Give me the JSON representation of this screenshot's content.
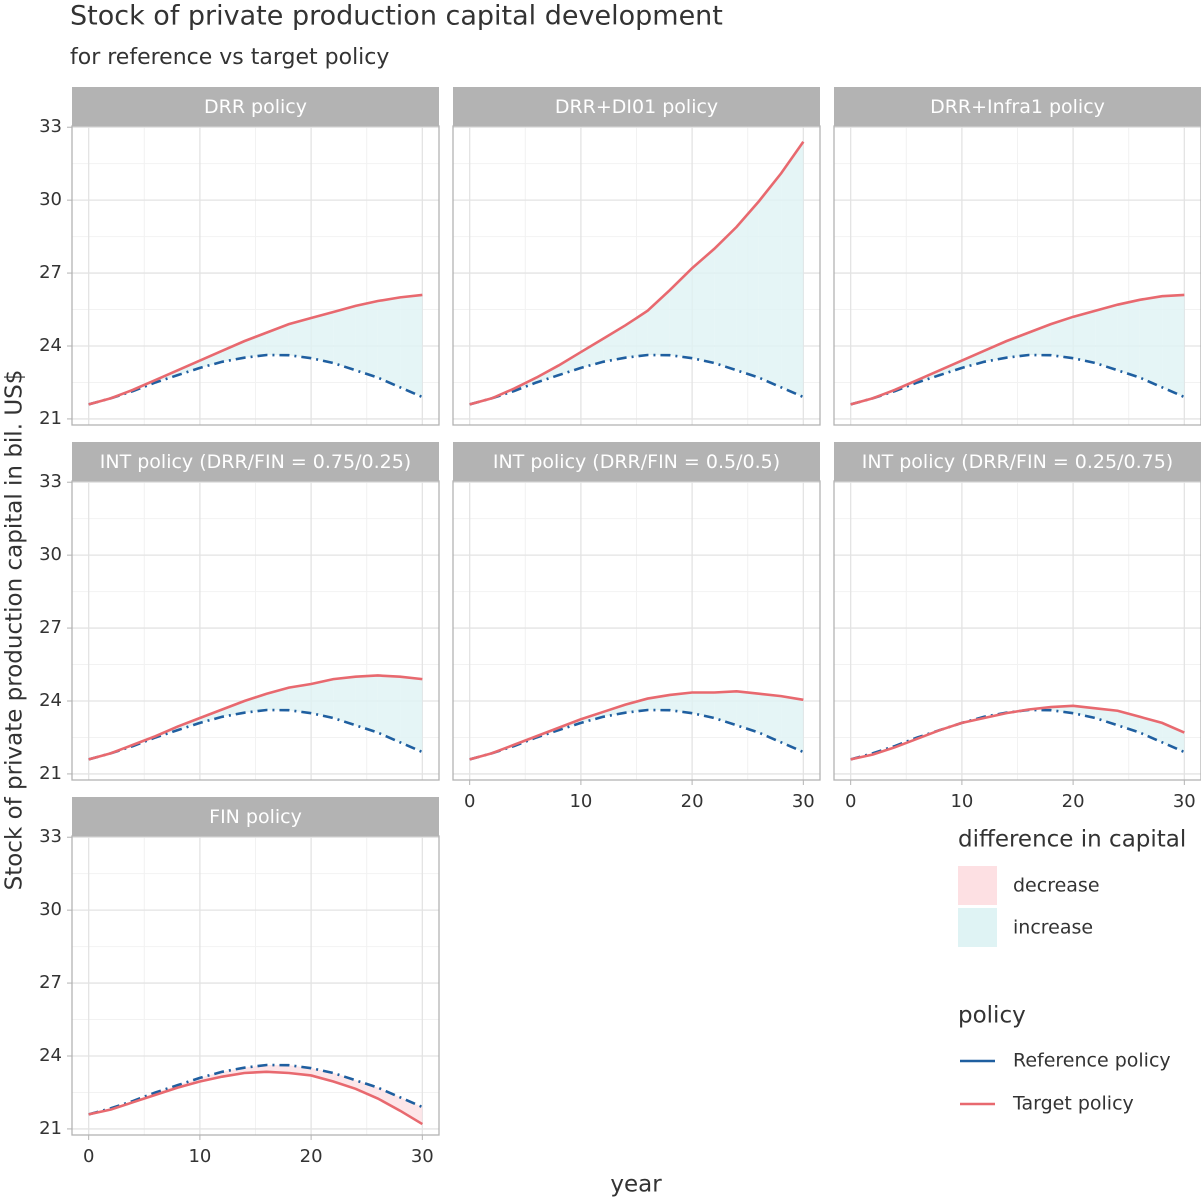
{
  "chart_data": {
    "type": "line",
    "title": "Stock of private production capital development",
    "subtitle": "for reference vs target policy",
    "xlabel": "year",
    "ylabel": "Stock of private production capital in bil. US$",
    "x": [
      0,
      2,
      4,
      6,
      8,
      10,
      12,
      14,
      16,
      18,
      20,
      22,
      24,
      26,
      28,
      30
    ],
    "xlim": [
      -1.5,
      31.5
    ],
    "ylim": [
      20.75,
      33.05
    ],
    "xticks": [
      0,
      10,
      20,
      30
    ],
    "yticks": [
      21,
      24,
      27,
      30,
      33
    ],
    "minor_xticks": [
      5,
      15,
      25
    ],
    "minor_yticks": [
      22.5,
      25.5,
      28.5,
      31.5
    ],
    "grid": true,
    "legend_position": "right",
    "legend_title": "policy",
    "fill_legend": {
      "title": "difference in capital",
      "items": [
        {
          "name": "decrease",
          "color": "#fde0e3"
        },
        {
          "name": "increase",
          "color": "#dff3f4"
        }
      ]
    },
    "panels": [
      {
        "title": "DRR policy",
        "series": [
          {
            "name": "Reference policy",
            "color": "#1f5fa0",
            "values": [
              21.6,
              21.85,
              22.15,
              22.5,
              22.8,
              23.1,
              23.35,
              23.52,
              23.63,
              23.62,
              23.5,
              23.3,
              23.0,
              22.7,
              22.3,
              21.9
            ]
          },
          {
            "name": "Target policy",
            "color": "#e8696f",
            "values": [
              21.6,
              21.85,
              22.2,
              22.6,
              23.0,
              23.4,
              23.8,
              24.2,
              24.55,
              24.9,
              25.15,
              25.4,
              25.65,
              25.85,
              26.0,
              26.1
            ]
          }
        ]
      },
      {
        "title": "DRR+DI01 policy",
        "series": [
          {
            "name": "Reference policy",
            "color": "#1f5fa0",
            "values": [
              21.6,
              21.85,
              22.15,
              22.5,
              22.8,
              23.1,
              23.35,
              23.52,
              23.63,
              23.62,
              23.5,
              23.3,
              23.0,
              22.7,
              22.3,
              21.9
            ]
          },
          {
            "name": "Target policy",
            "color": "#e8696f",
            "values": [
              21.6,
              21.85,
              22.25,
              22.7,
              23.2,
              23.75,
              24.3,
              24.85,
              25.45,
              26.3,
              27.2,
              28.0,
              28.9,
              29.95,
              31.1,
              32.4
            ]
          }
        ]
      },
      {
        "title": "DRR+Infra1 policy",
        "series": [
          {
            "name": "Reference policy",
            "color": "#1f5fa0",
            "values": [
              21.6,
              21.85,
              22.15,
              22.5,
              22.8,
              23.1,
              23.35,
              23.52,
              23.63,
              23.62,
              23.5,
              23.3,
              23.0,
              22.7,
              22.3,
              21.9
            ]
          },
          {
            "name": "Target policy",
            "color": "#e8696f",
            "values": [
              21.6,
              21.85,
              22.2,
              22.6,
              23.0,
              23.4,
              23.8,
              24.2,
              24.55,
              24.9,
              25.2,
              25.45,
              25.7,
              25.9,
              26.05,
              26.1
            ]
          }
        ]
      },
      {
        "title": "INT policy (DRR/FIN = 0.75/0.25)",
        "series": [
          {
            "name": "Reference policy",
            "color": "#1f5fa0",
            "values": [
              21.6,
              21.85,
              22.15,
              22.5,
              22.8,
              23.1,
              23.35,
              23.52,
              23.63,
              23.62,
              23.5,
              23.3,
              23.0,
              22.7,
              22.3,
              21.9
            ]
          },
          {
            "name": "Target policy",
            "color": "#e8696f",
            "values": [
              21.6,
              21.85,
              22.2,
              22.55,
              22.95,
              23.3,
              23.65,
              24.0,
              24.3,
              24.55,
              24.7,
              24.9,
              25.0,
              25.05,
              25.0,
              24.9
            ]
          }
        ]
      },
      {
        "title": "INT policy (DRR/FIN = 0.5/0.5)",
        "series": [
          {
            "name": "Reference policy",
            "color": "#1f5fa0",
            "values": [
              21.6,
              21.85,
              22.15,
              22.5,
              22.8,
              23.1,
              23.35,
              23.52,
              23.63,
              23.62,
              23.5,
              23.3,
              23.0,
              22.7,
              22.3,
              21.9
            ]
          },
          {
            "name": "Target policy",
            "color": "#e8696f",
            "values": [
              21.6,
              21.85,
              22.2,
              22.55,
              22.9,
              23.25,
              23.55,
              23.85,
              24.1,
              24.25,
              24.35,
              24.35,
              24.4,
              24.3,
              24.2,
              24.05
            ]
          }
        ]
      },
      {
        "title": "INT policy (DRR/FIN = 0.25/0.75)",
        "series": [
          {
            "name": "Reference policy",
            "color": "#1f5fa0",
            "values": [
              21.6,
              21.85,
              22.15,
              22.5,
              22.8,
              23.1,
              23.35,
              23.52,
              23.63,
              23.62,
              23.5,
              23.3,
              23.0,
              22.7,
              22.3,
              21.9
            ]
          },
          {
            "name": "Target policy",
            "color": "#e8696f",
            "values": [
              21.6,
              21.8,
              22.1,
              22.45,
              22.8,
              23.1,
              23.3,
              23.5,
              23.65,
              23.75,
              23.8,
              23.7,
              23.6,
              23.35,
              23.1,
              22.7
            ]
          }
        ]
      },
      {
        "title": "FIN policy",
        "series": [
          {
            "name": "Reference policy",
            "color": "#1f5fa0",
            "values": [
              21.6,
              21.85,
              22.15,
              22.5,
              22.8,
              23.1,
              23.35,
              23.52,
              23.63,
              23.62,
              23.5,
              23.3,
              23.0,
              22.7,
              22.3,
              21.9
            ]
          },
          {
            "name": "Target policy",
            "color": "#e8696f",
            "values": [
              21.6,
              21.8,
              22.1,
              22.4,
              22.7,
              22.95,
              23.15,
              23.3,
              23.35,
              23.3,
              23.2,
              22.95,
              22.65,
              22.25,
              21.75,
              21.2
            ]
          }
        ]
      }
    ]
  }
}
